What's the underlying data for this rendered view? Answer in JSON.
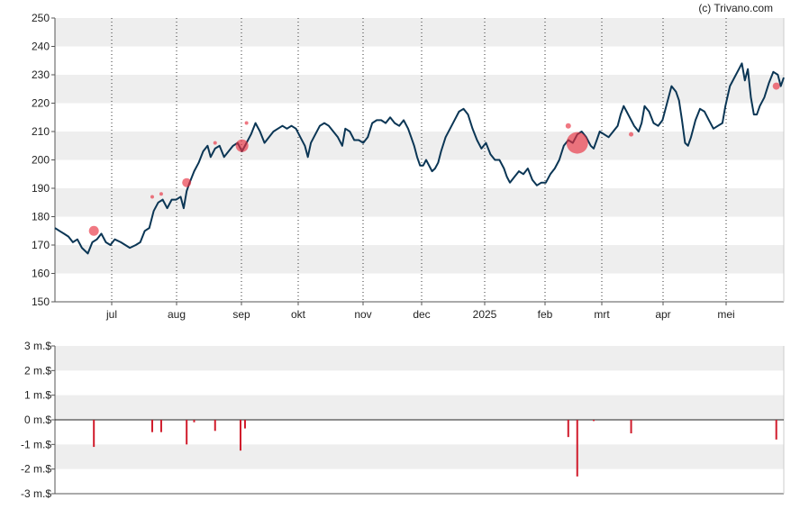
{
  "credit": "(c) Trivano.com",
  "colors": {
    "price_line": "#0b3655",
    "marker": "#e8303f",
    "bar": "#d01b2b",
    "band": "#eeeeee"
  },
  "chart_data": [
    {
      "type": "line",
      "ylim": [
        150,
        250
      ],
      "y_ticks": [
        "150",
        "160",
        "170",
        "180",
        "190",
        "200",
        "210",
        "220",
        "230",
        "240",
        "250"
      ],
      "x_month_labels": [
        "jul",
        "aug",
        "sep",
        "okt",
        "nov",
        "dec",
        "2025",
        "feb",
        "mrt",
        "apr",
        "mei"
      ],
      "grid": "dotted vertical at month boundaries, alternating horizontal bands",
      "series": [
        {
          "points": [
            [
              0,
              176
            ],
            [
              3,
              175
            ],
            [
              6,
              174
            ],
            [
              9,
              173
            ],
            [
              12,
              171
            ],
            [
              15,
              172
            ],
            [
              18,
              169
            ],
            [
              22,
              167
            ],
            [
              25,
              171
            ],
            [
              28,
              172
            ],
            [
              31,
              174
            ],
            [
              34,
              171
            ],
            [
              37,
              170
            ],
            [
              40,
              172
            ],
            [
              44,
              171
            ],
            [
              47,
              170
            ],
            [
              50,
              169
            ],
            [
              54,
              170
            ],
            [
              57,
              171
            ],
            [
              60,
              175
            ],
            [
              63,
              176
            ],
            [
              66,
              182
            ],
            [
              69,
              185
            ],
            [
              72,
              186
            ],
            [
              75,
              183
            ],
            [
              78,
              186
            ],
            [
              81,
              186
            ],
            [
              84,
              187
            ],
            [
              86,
              183
            ],
            [
              88,
              189
            ],
            [
              90,
              192
            ],
            [
              93,
              196
            ],
            [
              96,
              199
            ],
            [
              99,
              203
            ],
            [
              102,
              205
            ],
            [
              104,
              201
            ],
            [
              107,
              204
            ],
            [
              110,
              205
            ],
            [
              113,
              201
            ],
            [
              116,
              203
            ],
            [
              119,
              205
            ],
            [
              122,
              206
            ],
            [
              125,
              203
            ],
            [
              128,
              206
            ],
            [
              131,
              209
            ],
            [
              134,
              213
            ],
            [
              137,
              210
            ],
            [
              140,
              206
            ],
            [
              143,
              208
            ],
            [
              146,
              210
            ],
            [
              149,
              211
            ],
            [
              152,
              212
            ],
            [
              155,
              211
            ],
            [
              158,
              212
            ],
            [
              161,
              211
            ],
            [
              164,
              208
            ],
            [
              167,
              205
            ],
            [
              169,
              201
            ],
            [
              171,
              206
            ],
            [
              174,
              209
            ],
            [
              177,
              212
            ],
            [
              180,
              213
            ],
            [
              183,
              212
            ],
            [
              186,
              210
            ],
            [
              189,
              208
            ],
            [
              192,
              205
            ],
            [
              194,
              211
            ],
            [
              197,
              210
            ],
            [
              200,
              207
            ],
            [
              203,
              207
            ],
            [
              206,
              206
            ],
            [
              209,
              208
            ],
            [
              212,
              213
            ],
            [
              215,
              214
            ],
            [
              218,
              214
            ],
            [
              221,
              213
            ],
            [
              224,
              215
            ],
            [
              227,
              213
            ],
            [
              230,
              212
            ],
            [
              233,
              214
            ],
            [
              236,
              211
            ],
            [
              238,
              208
            ],
            [
              240,
              205
            ],
            [
              242,
              201
            ],
            [
              244,
              198
            ],
            [
              246,
              198
            ],
            [
              248,
              200
            ],
            [
              250,
              198
            ],
            [
              252,
              196
            ],
            [
              254,
              197
            ],
            [
              256,
              199
            ],
            [
              258,
              203
            ],
            [
              261,
              208
            ],
            [
              264,
              211
            ],
            [
              267,
              214
            ],
            [
              270,
              217
            ],
            [
              273,
              218
            ],
            [
              276,
              216
            ],
            [
              279,
              211
            ],
            [
              282,
              207
            ],
            [
              285,
              204
            ],
            [
              288,
              206
            ],
            [
              291,
              202
            ],
            [
              294,
              200
            ],
            [
              297,
              200
            ],
            [
              300,
              197
            ],
            [
              302,
              194
            ],
            [
              304,
              192
            ],
            [
              307,
              194
            ],
            [
              310,
              196
            ],
            [
              313,
              195
            ],
            [
              316,
              197
            ],
            [
              319,
              193
            ],
            [
              322,
              191
            ],
            [
              325,
              192
            ],
            [
              328,
              192
            ],
            [
              331,
              195
            ],
            [
              334,
              197
            ],
            [
              337,
              200
            ],
            [
              340,
              205
            ],
            [
              343,
              207
            ],
            [
              346,
              206
            ],
            [
              349,
              209
            ],
            [
              352,
              210
            ],
            [
              355,
              208
            ],
            [
              358,
              205
            ],
            [
              360,
              204
            ],
            [
              362,
              207
            ],
            [
              364,
              210
            ],
            [
              367,
              209
            ],
            [
              370,
              208
            ],
            [
              373,
              210
            ],
            [
              376,
              212
            ],
            [
              378,
              216
            ],
            [
              380,
              219
            ],
            [
              382,
              217
            ],
            [
              385,
              214
            ],
            [
              387,
              212
            ],
            [
              390,
              210
            ],
            [
              392,
              213
            ],
            [
              394,
              219
            ],
            [
              397,
              217
            ],
            [
              400,
              213
            ],
            [
              403,
              212
            ],
            [
              406,
              214
            ],
            [
              409,
              220
            ],
            [
              412,
              226
            ],
            [
              415,
              224
            ],
            [
              417,
              221
            ],
            [
              419,
              214
            ],
            [
              421,
              206
            ],
            [
              423,
              205
            ],
            [
              425,
              208
            ],
            [
              428,
              214
            ],
            [
              431,
              218
            ],
            [
              434,
              217
            ],
            [
              437,
              214
            ],
            [
              440,
              211
            ],
            [
              443,
              212
            ],
            [
              446,
              213
            ],
            [
              448,
              219
            ],
            [
              451,
              226
            ],
            [
              454,
              229
            ],
            [
              457,
              232
            ],
            [
              459,
              234
            ],
            [
              461,
              228
            ],
            [
              463,
              232
            ],
            [
              465,
              222
            ],
            [
              467,
              216
            ],
            [
              469,
              216
            ],
            [
              471,
              219
            ],
            [
              474,
              222
            ],
            [
              477,
              227
            ],
            [
              480,
              231
            ],
            [
              483,
              230
            ],
            [
              485,
              226
            ],
            [
              487,
              229
            ]
          ]
        }
      ],
      "markers": [
        {
          "x": 26,
          "y": 175,
          "size": 11
        },
        {
          "x": 65,
          "y": 187,
          "size": 4
        },
        {
          "x": 71,
          "y": 188,
          "size": 4
        },
        {
          "x": 88,
          "y": 192,
          "size": 10
        },
        {
          "x": 107,
          "y": 206,
          "size": 4
        },
        {
          "x": 125,
          "y": 205,
          "size": 14
        },
        {
          "x": 128,
          "y": 213,
          "size": 4
        },
        {
          "x": 343,
          "y": 212,
          "size": 6
        },
        {
          "x": 349,
          "y": 206,
          "size": 24
        },
        {
          "x": 385,
          "y": 209,
          "size": 5
        },
        {
          "x": 482,
          "y": 226,
          "size": 8
        }
      ]
    },
    {
      "type": "bar",
      "ylim": [
        -3,
        3
      ],
      "y_ticks": [
        "-3 m.$",
        "-2 m.$",
        "-1 m.$",
        "0 m.$",
        "1 m.$",
        "2 m.$",
        "3 m.$"
      ],
      "grid": "alternating horizontal bands, solid zero line",
      "bars": [
        {
          "x": 26,
          "value": -1.1
        },
        {
          "x": 65,
          "value": -0.5
        },
        {
          "x": 71,
          "value": -0.5
        },
        {
          "x": 88,
          "value": -1.0
        },
        {
          "x": 93,
          "value": -0.1
        },
        {
          "x": 107,
          "value": -0.45
        },
        {
          "x": 124,
          "value": -1.25
        },
        {
          "x": 127,
          "value": -0.35
        },
        {
          "x": 343,
          "value": -0.7
        },
        {
          "x": 349,
          "value": -2.3
        },
        {
          "x": 360,
          "value": -0.05
        },
        {
          "x": 385,
          "value": -0.55
        },
        {
          "x": 482,
          "value": -0.8
        }
      ]
    }
  ]
}
